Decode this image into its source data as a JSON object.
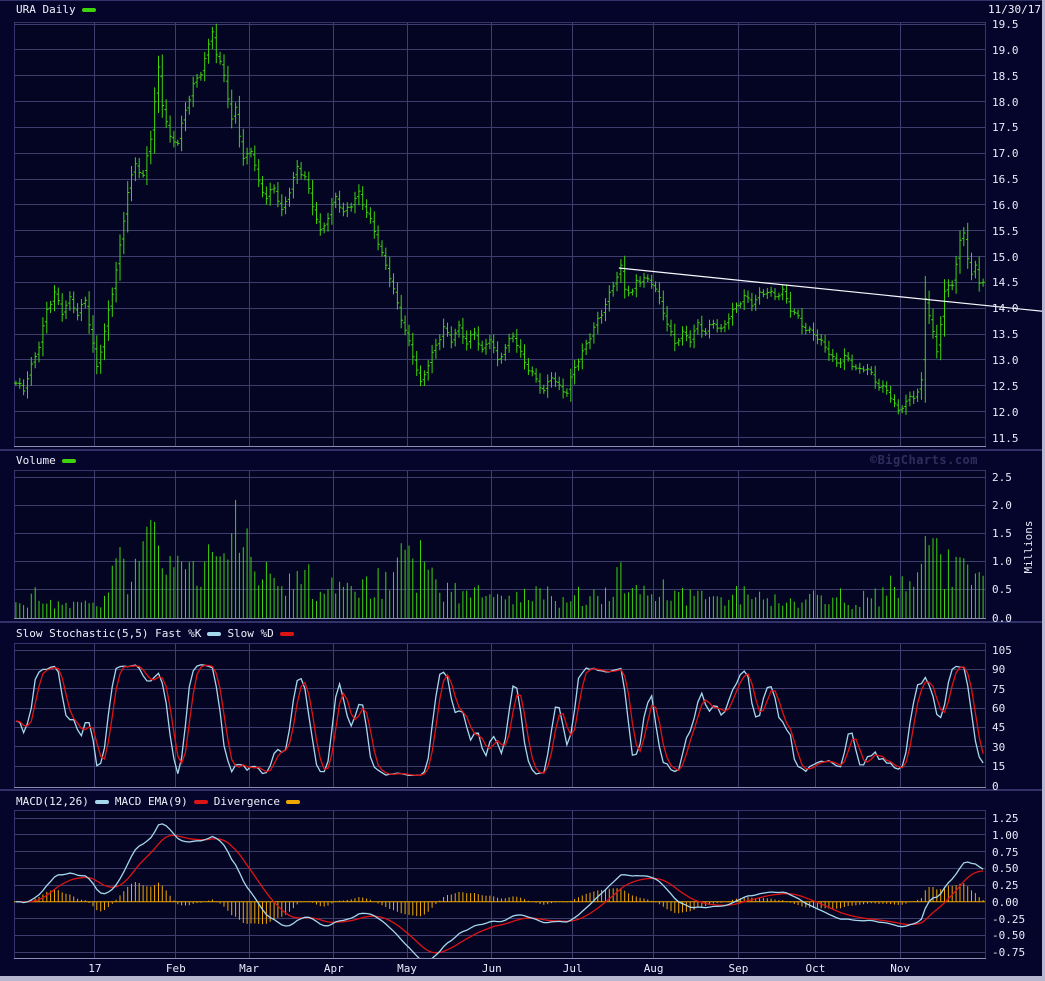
{
  "meta": {
    "symbol_title": "URA Daily",
    "date_label": "11/30/17",
    "watermark": "©BigCharts.com"
  },
  "colors": {
    "background": "#05052b",
    "plot_background": "#040423",
    "grid": "#3e3e6e",
    "axis_light": "#8c8cb4",
    "axis_dark": "#35356e",
    "price_green": "#3dd40c",
    "stoch_k_blue": "#a5d8ec",
    "stoch_d_red": "#dd1414",
    "macd_blue": "#a5d8ec",
    "macd_ema_red": "#dd1414",
    "divergence_yellow": "#f0a800",
    "trendline_white": "#f8f8ff",
    "text": "#f0f0fa",
    "watermark_text": "#2e2e5e",
    "window_edge": "#b7b7d0"
  },
  "panels": {
    "price": {
      "legend": "URA Daily",
      "y_ticks": [
        "19.5",
        "19.0",
        "18.5",
        "18.0",
        "17.5",
        "17.0",
        "16.5",
        "16.0",
        "15.5",
        "15.0",
        "14.5",
        "14.0",
        "13.5",
        "13.0",
        "12.5",
        "12.0",
        "11.5"
      ]
    },
    "volume": {
      "legend": "Volume",
      "ylabel": "Millions",
      "y_ticks": [
        "2.5",
        "2.0",
        "1.5",
        "1.0",
        "0.5",
        "0.0"
      ]
    },
    "stochastic": {
      "legend_k": "Slow Stochastic(5,5) Fast %K",
      "legend_d": "Slow %D",
      "y_ticks": [
        "105",
        "90",
        "75",
        "60",
        "45",
        "30",
        "15",
        "0"
      ]
    },
    "macd": {
      "legend_macd": "MACD(12,26)",
      "legend_ema": "MACD EMA(9)",
      "legend_div": "Divergence",
      "y_ticks": [
        "1.25",
        "1.00",
        "0.75",
        "0.50",
        "0.25",
        "0.00",
        "-0.25",
        "-0.50",
        "-0.75"
      ]
    }
  },
  "x_axis": {
    "labels": [
      "17",
      "Feb",
      "Mar",
      "Apr",
      "May",
      "Jun",
      "Jul",
      "Aug",
      "Sep",
      "Oct",
      "Nov"
    ],
    "month_start_days": [
      21,
      42,
      61,
      83,
      102,
      124,
      145,
      166,
      188,
      208,
      230
    ],
    "total_days": 252
  },
  "chart_data": [
    {
      "type": "ohlc",
      "title": "URA Daily",
      "ylim": [
        11.5,
        19.5
      ],
      "y_tick_step": 0.5,
      "close_anchors": [
        [
          0,
          12.55
        ],
        [
          2,
          12.4
        ],
        [
          4,
          12.85
        ],
        [
          6,
          13.3
        ],
        [
          8,
          14.0
        ],
        [
          10,
          14.3
        ],
        [
          12,
          13.9
        ],
        [
          14,
          14.15
        ],
        [
          16,
          13.9
        ],
        [
          18,
          14.2
        ],
        [
          20,
          13.3
        ],
        [
          21,
          12.85
        ],
        [
          23,
          13.5
        ],
        [
          25,
          14.3
        ],
        [
          27,
          15.2
        ],
        [
          29,
          16.3
        ],
        [
          31,
          16.8
        ],
        [
          33,
          16.5
        ],
        [
          35,
          17.3
        ],
        [
          37,
          18.65
        ],
        [
          38,
          18.0
        ],
        [
          40,
          17.3
        ],
        [
          42,
          17.2
        ],
        [
          44,
          17.8
        ],
        [
          46,
          18.3
        ],
        [
          48,
          18.6
        ],
        [
          50,
          19.1
        ],
        [
          51,
          19.4
        ],
        [
          52,
          18.9
        ],
        [
          54,
          18.5
        ],
        [
          56,
          17.6
        ],
        [
          57,
          17.9
        ],
        [
          59,
          16.9
        ],
        [
          61,
          17.1
        ],
        [
          63,
          16.4
        ],
        [
          65,
          16.1
        ],
        [
          67,
          16.35
        ],
        [
          69,
          15.9
        ],
        [
          71,
          16.3
        ],
        [
          73,
          16.7
        ],
        [
          75,
          16.5
        ],
        [
          77,
          16.0
        ],
        [
          79,
          15.5
        ],
        [
          81,
          15.8
        ],
        [
          83,
          16.15
        ],
        [
          85,
          15.8
        ],
        [
          87,
          16.0
        ],
        [
          89,
          16.25
        ],
        [
          91,
          15.9
        ],
        [
          93,
          15.5
        ],
        [
          95,
          15.0
        ],
        [
          97,
          14.6
        ],
        [
          99,
          14.1
        ],
        [
          101,
          13.6
        ],
        [
          103,
          13.1
        ],
        [
          105,
          12.5
        ],
        [
          107,
          12.9
        ],
        [
          109,
          13.3
        ],
        [
          111,
          13.65
        ],
        [
          113,
          13.4
        ],
        [
          115,
          13.6
        ],
        [
          117,
          13.3
        ],
        [
          119,
          13.55
        ],
        [
          121,
          13.2
        ],
        [
          123,
          13.45
        ],
        [
          125,
          12.95
        ],
        [
          127,
          13.2
        ],
        [
          129,
          13.5
        ],
        [
          131,
          13.15
        ],
        [
          133,
          12.85
        ],
        [
          135,
          12.6
        ],
        [
          137,
          12.35
        ],
        [
          139,
          12.7
        ],
        [
          141,
          12.5
        ],
        [
          143,
          12.4
        ],
        [
          145,
          12.85
        ],
        [
          147,
          13.1
        ],
        [
          149,
          13.45
        ],
        [
          151,
          13.8
        ],
        [
          153,
          14.1
        ],
        [
          155,
          14.45
        ],
        [
          157,
          14.75
        ],
        [
          158,
          14.35
        ],
        [
          160,
          14.3
        ],
        [
          161,
          14.55
        ],
        [
          163,
          14.6
        ],
        [
          165,
          14.5
        ],
        [
          166,
          14.35
        ],
        [
          168,
          13.9
        ],
        [
          170,
          13.5
        ],
        [
          171,
          13.35
        ],
        [
          173,
          13.55
        ],
        [
          175,
          13.4
        ],
        [
          177,
          13.65
        ],
        [
          179,
          13.5
        ],
        [
          181,
          13.75
        ],
        [
          183,
          13.6
        ],
        [
          185,
          13.85
        ],
        [
          187,
          14.0
        ],
        [
          189,
          14.2
        ],
        [
          191,
          14.1
        ],
        [
          193,
          14.3
        ],
        [
          195,
          14.35
        ],
        [
          197,
          14.2
        ],
        [
          199,
          14.3
        ],
        [
          201,
          14.0
        ],
        [
          203,
          13.85
        ],
        [
          205,
          13.6
        ],
        [
          207,
          13.5
        ],
        [
          209,
          13.3
        ],
        [
          211,
          13.15
        ],
        [
          213,
          12.95
        ],
        [
          215,
          13.1
        ],
        [
          217,
          12.9
        ],
        [
          219,
          12.75
        ],
        [
          221,
          12.85
        ],
        [
          223,
          12.6
        ],
        [
          225,
          12.5
        ],
        [
          227,
          12.3
        ],
        [
          229,
          11.95
        ],
        [
          231,
          12.2
        ],
        [
          233,
          12.3
        ],
        [
          235,
          12.6
        ],
        [
          236,
          14.2
        ],
        [
          237,
          13.9
        ],
        [
          239,
          13.1
        ],
        [
          241,
          14.3
        ],
        [
          243,
          14.5
        ],
        [
          245,
          15.3
        ],
        [
          246,
          15.5
        ],
        [
          247,
          15.0
        ],
        [
          248,
          14.6
        ],
        [
          249,
          14.8
        ],
        [
          250,
          14.5
        ],
        [
          251,
          14.45
        ]
      ],
      "trendline": {
        "day1": 157,
        "price1": 14.78,
        "day2": 268.5,
        "price2": 13.93
      }
    },
    {
      "type": "bar",
      "title": "Volume",
      "ylabel": "Millions",
      "ylim": [
        0,
        2.5
      ],
      "volume_anchors_millions": [
        [
          0,
          0.3
        ],
        [
          3,
          0.18
        ],
        [
          5,
          0.45
        ],
        [
          8,
          0.3
        ],
        [
          11,
          0.25
        ],
        [
          14,
          0.2
        ],
        [
          17,
          0.3
        ],
        [
          20,
          0.2
        ],
        [
          23,
          0.4
        ],
        [
          26,
          0.8
        ],
        [
          27,
          1.2
        ],
        [
          28,
          0.7
        ],
        [
          30,
          0.9
        ],
        [
          32,
          1.05
        ],
        [
          34,
          1.75
        ],
        [
          36,
          1.8
        ],
        [
          38,
          0.9
        ],
        [
          41,
          0.75
        ],
        [
          44,
          0.9
        ],
        [
          46,
          1.0
        ],
        [
          48,
          0.8
        ],
        [
          50,
          1.3
        ],
        [
          51,
          1.15
        ],
        [
          53,
          0.9
        ],
        [
          55,
          0.7
        ],
        [
          57,
          2.25
        ],
        [
          58,
          1.1
        ],
        [
          60,
          1.6
        ],
        [
          62,
          0.7
        ],
        [
          64,
          0.55
        ],
        [
          66,
          0.8
        ],
        [
          68,
          0.5
        ],
        [
          71,
          0.6
        ],
        [
          73,
          0.75
        ],
        [
          76,
          0.65
        ],
        [
          79,
          0.45
        ],
        [
          82,
          0.55
        ],
        [
          85,
          0.4
        ],
        [
          88,
          0.55
        ],
        [
          91,
          0.5
        ],
        [
          94,
          0.6
        ],
        [
          97,
          0.55
        ],
        [
          100,
          1.25
        ],
        [
          102,
          1.2
        ],
        [
          104,
          0.8
        ],
        [
          105,
          1.3
        ],
        [
          107,
          0.7
        ],
        [
          110,
          0.55
        ],
        [
          113,
          0.45
        ],
        [
          116,
          0.5
        ],
        [
          119,
          0.5
        ],
        [
          122,
          0.35
        ],
        [
          125,
          0.5
        ],
        [
          128,
          0.4
        ],
        [
          131,
          0.35
        ],
        [
          134,
          0.38
        ],
        [
          137,
          0.45
        ],
        [
          140,
          0.32
        ],
        [
          143,
          0.35
        ],
        [
          146,
          0.38
        ],
        [
          149,
          0.45
        ],
        [
          152,
          0.38
        ],
        [
          155,
          0.5
        ],
        [
          156,
          0.95
        ],
        [
          158,
          0.55
        ],
        [
          161,
          0.48
        ],
        [
          164,
          0.4
        ],
        [
          167,
          0.48
        ],
        [
          170,
          0.55
        ],
        [
          173,
          0.42
        ],
        [
          176,
          0.35
        ],
        [
          179,
          0.38
        ],
        [
          182,
          0.3
        ],
        [
          185,
          0.38
        ],
        [
          188,
          0.45
        ],
        [
          190,
          0.55
        ],
        [
          193,
          0.42
        ],
        [
          196,
          0.35
        ],
        [
          199,
          0.38
        ],
        [
          202,
          0.3
        ],
        [
          205,
          0.38
        ],
        [
          208,
          0.4
        ],
        [
          211,
          0.36
        ],
        [
          214,
          0.4
        ],
        [
          217,
          0.3
        ],
        [
          220,
          0.32
        ],
        [
          223,
          0.35
        ],
        [
          226,
          0.45
        ],
        [
          228,
          0.55
        ],
        [
          230,
          0.5
        ],
        [
          232,
          0.45
        ],
        [
          234,
          0.6
        ],
        [
          236,
          1.45
        ],
        [
          237,
          1.3
        ],
        [
          239,
          1.35
        ],
        [
          241,
          0.8
        ],
        [
          243,
          0.9
        ],
        [
          245,
          1.1
        ],
        [
          247,
          0.95
        ],
        [
          249,
          0.7
        ],
        [
          251,
          0.75
        ]
      ]
    },
    {
      "type": "line",
      "title": "Slow Stochastic(5,5)",
      "series": [
        {
          "name": "Fast %K",
          "color": "#a5d8ec"
        },
        {
          "name": "Slow %D",
          "color": "#dd1414"
        }
      ],
      "ylim": [
        0,
        105
      ],
      "derived_from": "price closes via stochastic(5) smoothed 3,3"
    },
    {
      "type": "line+bar",
      "title": "MACD(12,26)",
      "series": [
        {
          "name": "MACD(12,26)",
          "color": "#a5d8ec"
        },
        {
          "name": "MACD EMA(9)",
          "color": "#dd1414"
        },
        {
          "name": "Divergence",
          "color": "#f0a800"
        }
      ],
      "ylim": [
        -0.75,
        1.25
      ],
      "derived_from": "price closes via EMA12-EMA26, signal EMA9, histogram = difference"
    }
  ]
}
